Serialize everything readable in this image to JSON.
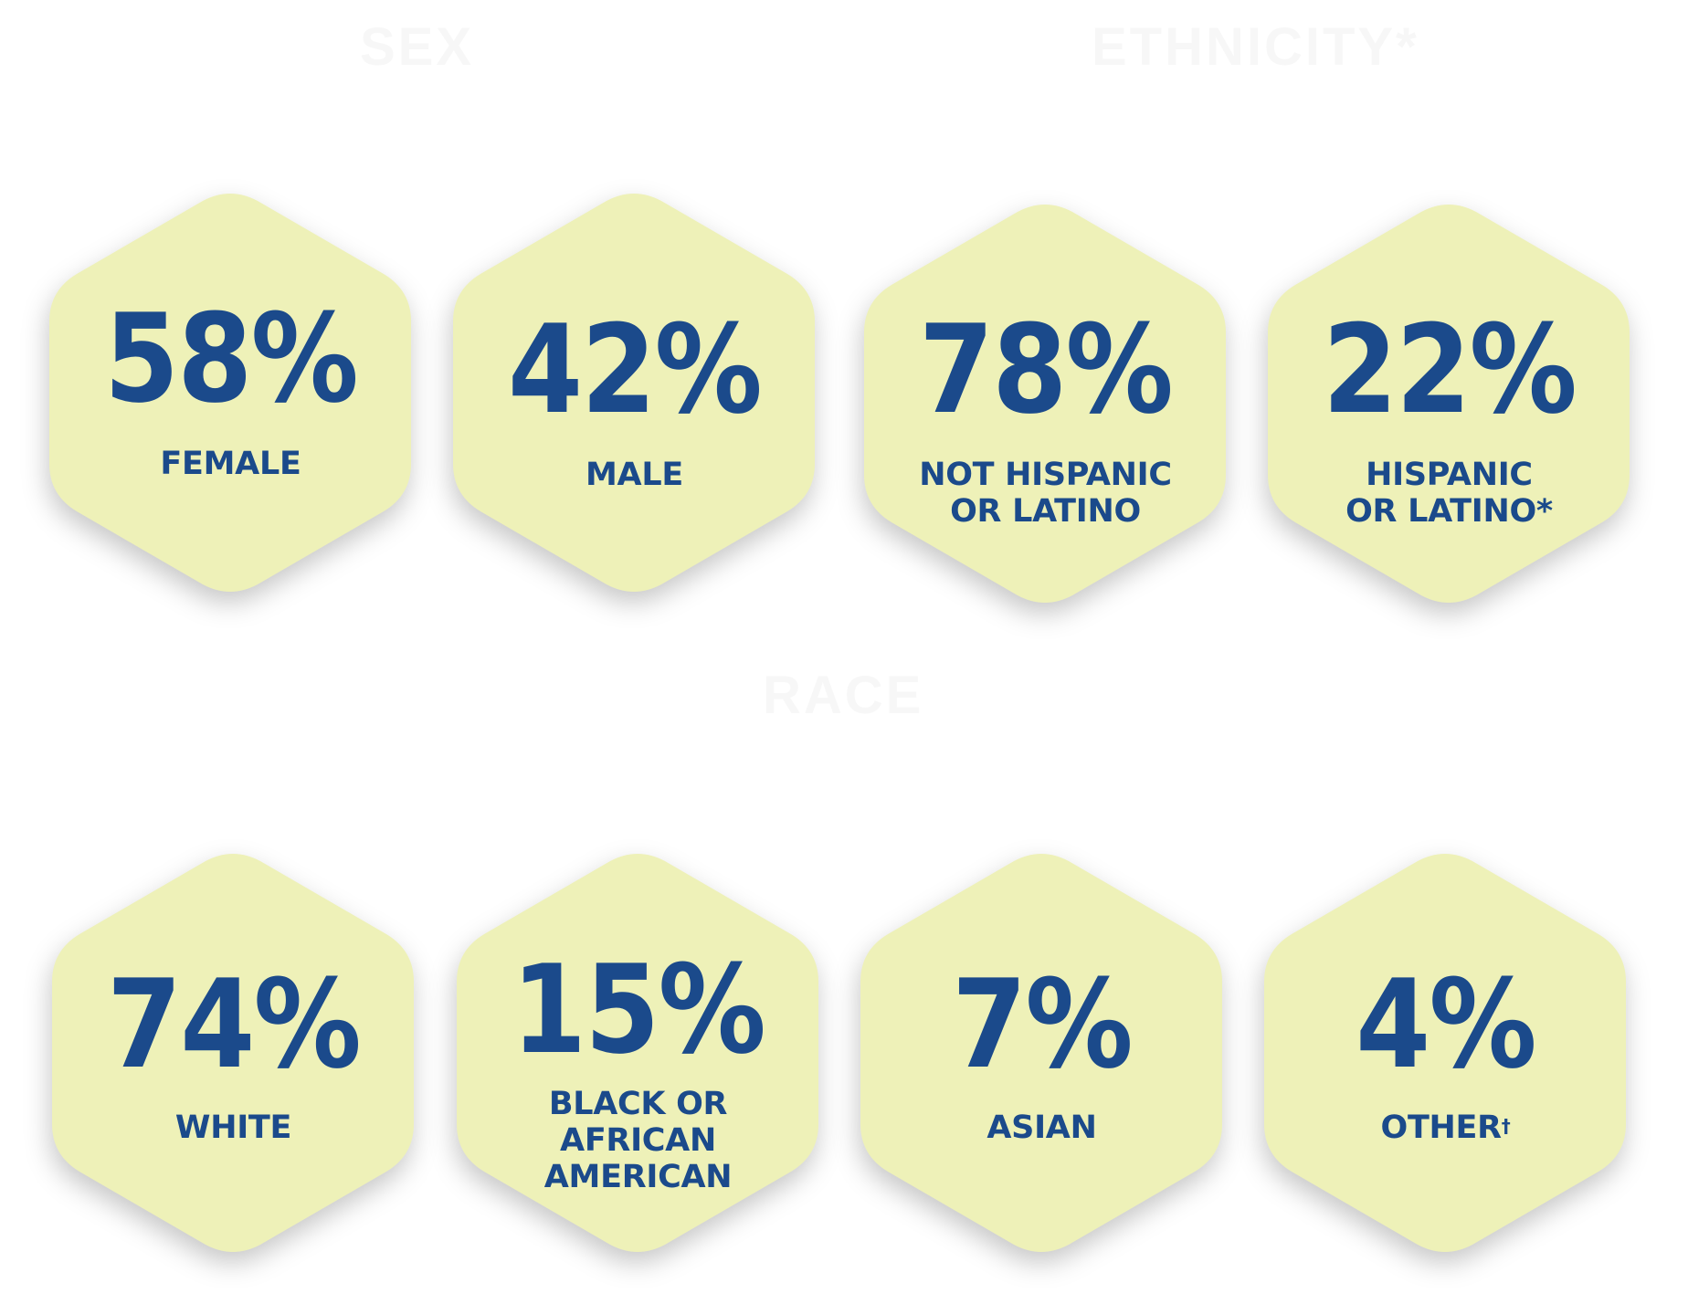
{
  "colors": {
    "hexagon_fill": "#eef1b8",
    "text": "#1b4a8b",
    "faint_heading": "#f7f7f7"
  },
  "sections": {
    "sex": {
      "title": "SEX"
    },
    "ethnicity": {
      "title": "ETHNICITY*"
    },
    "race": {
      "title": "RACE"
    }
  },
  "stats": {
    "female": {
      "value": "58%",
      "label": "FEMALE"
    },
    "male": {
      "value": "42%",
      "label": "MALE"
    },
    "not_hispanic": {
      "value": "78%",
      "label": "NOT HISPANIC\nOR LATINO"
    },
    "hispanic": {
      "value": "22%",
      "label": "HISPANIC\nOR LATINO*"
    },
    "white": {
      "value": "74%",
      "label": "WHITE"
    },
    "black": {
      "value": "15%",
      "label": "BLACK OR\nAFRICAN\nAMERICAN"
    },
    "asian": {
      "value": "7%",
      "label": "ASIAN"
    },
    "other": {
      "value": "4%",
      "label": "OTHER",
      "footnote_mark": "†"
    }
  }
}
